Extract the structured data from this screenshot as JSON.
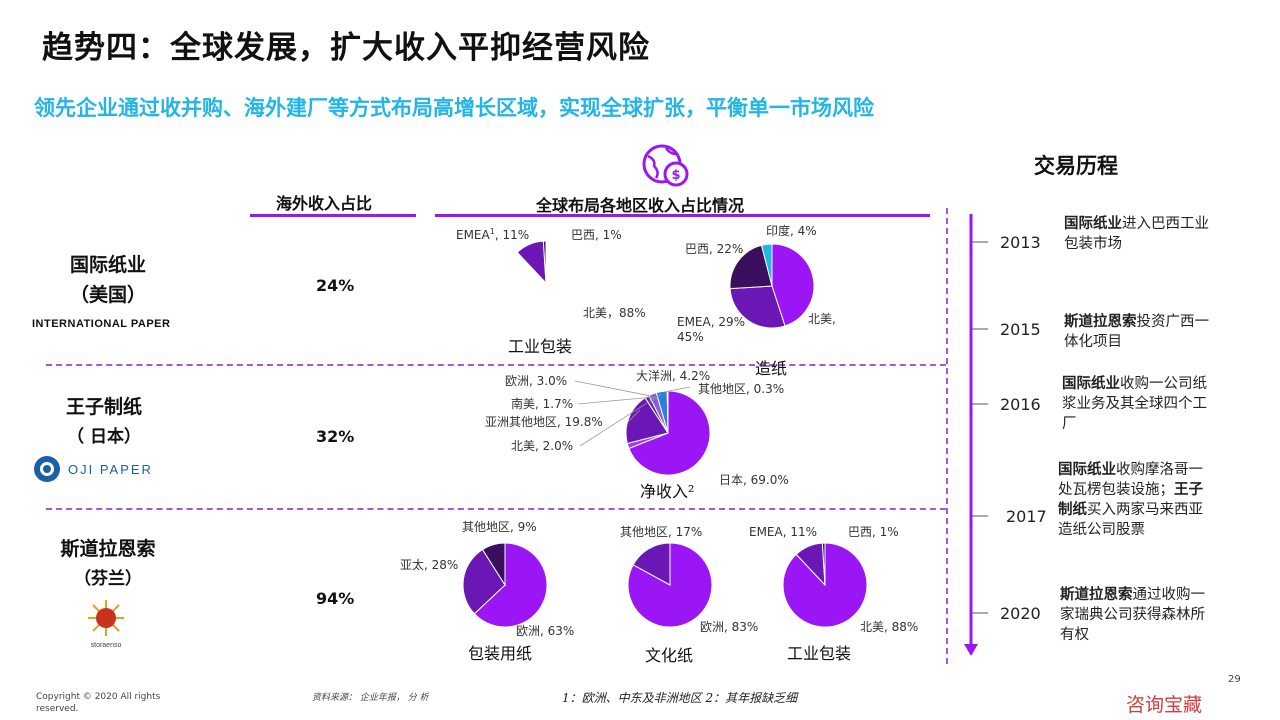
{
  "title": "趋势四：全球发展，扩大收入平抑经营风险",
  "subtitle": "领先企业通过收并购、海外建厂等方式布局高增长区域，实现全球扩张，平衡单一市场风险",
  "columns": {
    "share": "海外收入占比",
    "global": "全球布局各地区收入占比情况"
  },
  "timeline_title": "交易历程",
  "colors": {
    "accent": "#9b16f5",
    "dark": "#3a0f5e",
    "mid": "#6a17b5",
    "light": "#a23ef0",
    "cyan": "#22b5e6",
    "blue": "#2a7fdc",
    "divider": "#a25ad8"
  },
  "companies": [
    {
      "name": "国际纸业",
      "country": "（美国）",
      "share": "24%",
      "logo_text": "INTERNATIONAL PAPER"
    },
    {
      "name": "王子制纸",
      "country": "（ 日本）",
      "share": "32%",
      "logo_text": "OJI PAPER"
    },
    {
      "name": "斯道拉恩索",
      "country": "（芬兰）",
      "share": "94%",
      "logo_text": "storaenso"
    }
  ],
  "chart_data": [
    {
      "type": "pie",
      "title": "工业包装",
      "slices": [
        {
          "label": "北美",
          "value": 88
        },
        {
          "label": "EMEA¹",
          "value": 11
        },
        {
          "label": "巴西",
          "value": 1
        }
      ],
      "data_labels": [
        "北美，88%",
        "EMEA",
        "1",
        ", 11%",
        "巴西, 1%"
      ]
    },
    {
      "type": "pie",
      "title": "造纸",
      "slices": [
        {
          "label": "北美",
          "value": 45
        },
        {
          "label": "EMEA",
          "value": 29
        },
        {
          "label": "巴西",
          "value": 22
        },
        {
          "label": "印度",
          "value": 4
        }
      ],
      "data_labels": [
        "印度, 4%",
        "巴西, 22%",
        "EMEA, 29%",
        "北美,",
        "45%"
      ]
    },
    {
      "type": "pie",
      "title": "净收入²",
      "slices": [
        {
          "label": "日本",
          "value": 69.0
        },
        {
          "label": "北美",
          "value": 2.0
        },
        {
          "label": "亚洲其他地区",
          "value": 19.8
        },
        {
          "label": "南美",
          "value": 1.7
        },
        {
          "label": "欧洲",
          "value": 3.0
        },
        {
          "label": "大洋洲",
          "value": 4.2
        },
        {
          "label": "其他地区",
          "value": 0.3
        }
      ],
      "data_labels": [
        "日本, 69.0%",
        "北美, 2.0%",
        "亚洲其他地区, 19.8%",
        "南美, 1.7%",
        "欧洲, 3.0%",
        "大洋洲, 4.2%",
        "其他地区, 0.3%"
      ]
    },
    {
      "type": "pie",
      "title": "包装用纸",
      "slices": [
        {
          "label": "欧洲",
          "value": 63
        },
        {
          "label": "亚太",
          "value": 28
        },
        {
          "label": "其他地区",
          "value": 9
        }
      ],
      "data_labels": [
        "其他地区, 9%",
        "亚太, 28%",
        "欧洲, 63%"
      ]
    },
    {
      "type": "pie",
      "title": "文化纸",
      "slices": [
        {
          "label": "欧洲",
          "value": 83
        },
        {
          "label": "其他地区",
          "value": 17
        }
      ],
      "data_labels": [
        "其他地区, 17%",
        "欧洲, 83%"
      ]
    },
    {
      "type": "pie",
      "title": "工业包装",
      "slices": [
        {
          "label": "北美",
          "value": 88
        },
        {
          "label": "EMEA",
          "value": 11
        },
        {
          "label": "巴西",
          "value": 1
        }
      ],
      "data_labels": [
        "EMEA, 11%",
        "巴西, 1%",
        "北美, 88%"
      ]
    }
  ],
  "timeline": [
    {
      "year": "2013",
      "bold": "国际纸业",
      "rest": "进入巴西工业包装市场"
    },
    {
      "year": "2015",
      "bold": "斯道拉恩索",
      "rest": "投资广西一体化项目"
    },
    {
      "year": "2016",
      "bold": "国际纸业",
      "rest": "收购一公司纸浆业务及其全球四个工厂"
    },
    {
      "year": "2017",
      "bold": "国际纸业",
      "rest": "收购摩洛哥一处瓦楞包装设施；",
      "bold2": "王子制纸",
      "rest2": "买入两家马来西亚造纸公司股票"
    },
    {
      "year": "2020",
      "bold": "斯道拉恩索",
      "rest": "通过收购一家瑞典公司获得森林所有权"
    }
  ],
  "footer": {
    "copyright": "Copyright © 2020 All rights reserved.",
    "source": "资料来源： 企业年报， 分 析",
    "footnote": "1：欧洲、中东及非洲地区  2：其年报缺乏细",
    "page": "29",
    "watermark": "咨询宝藏"
  }
}
